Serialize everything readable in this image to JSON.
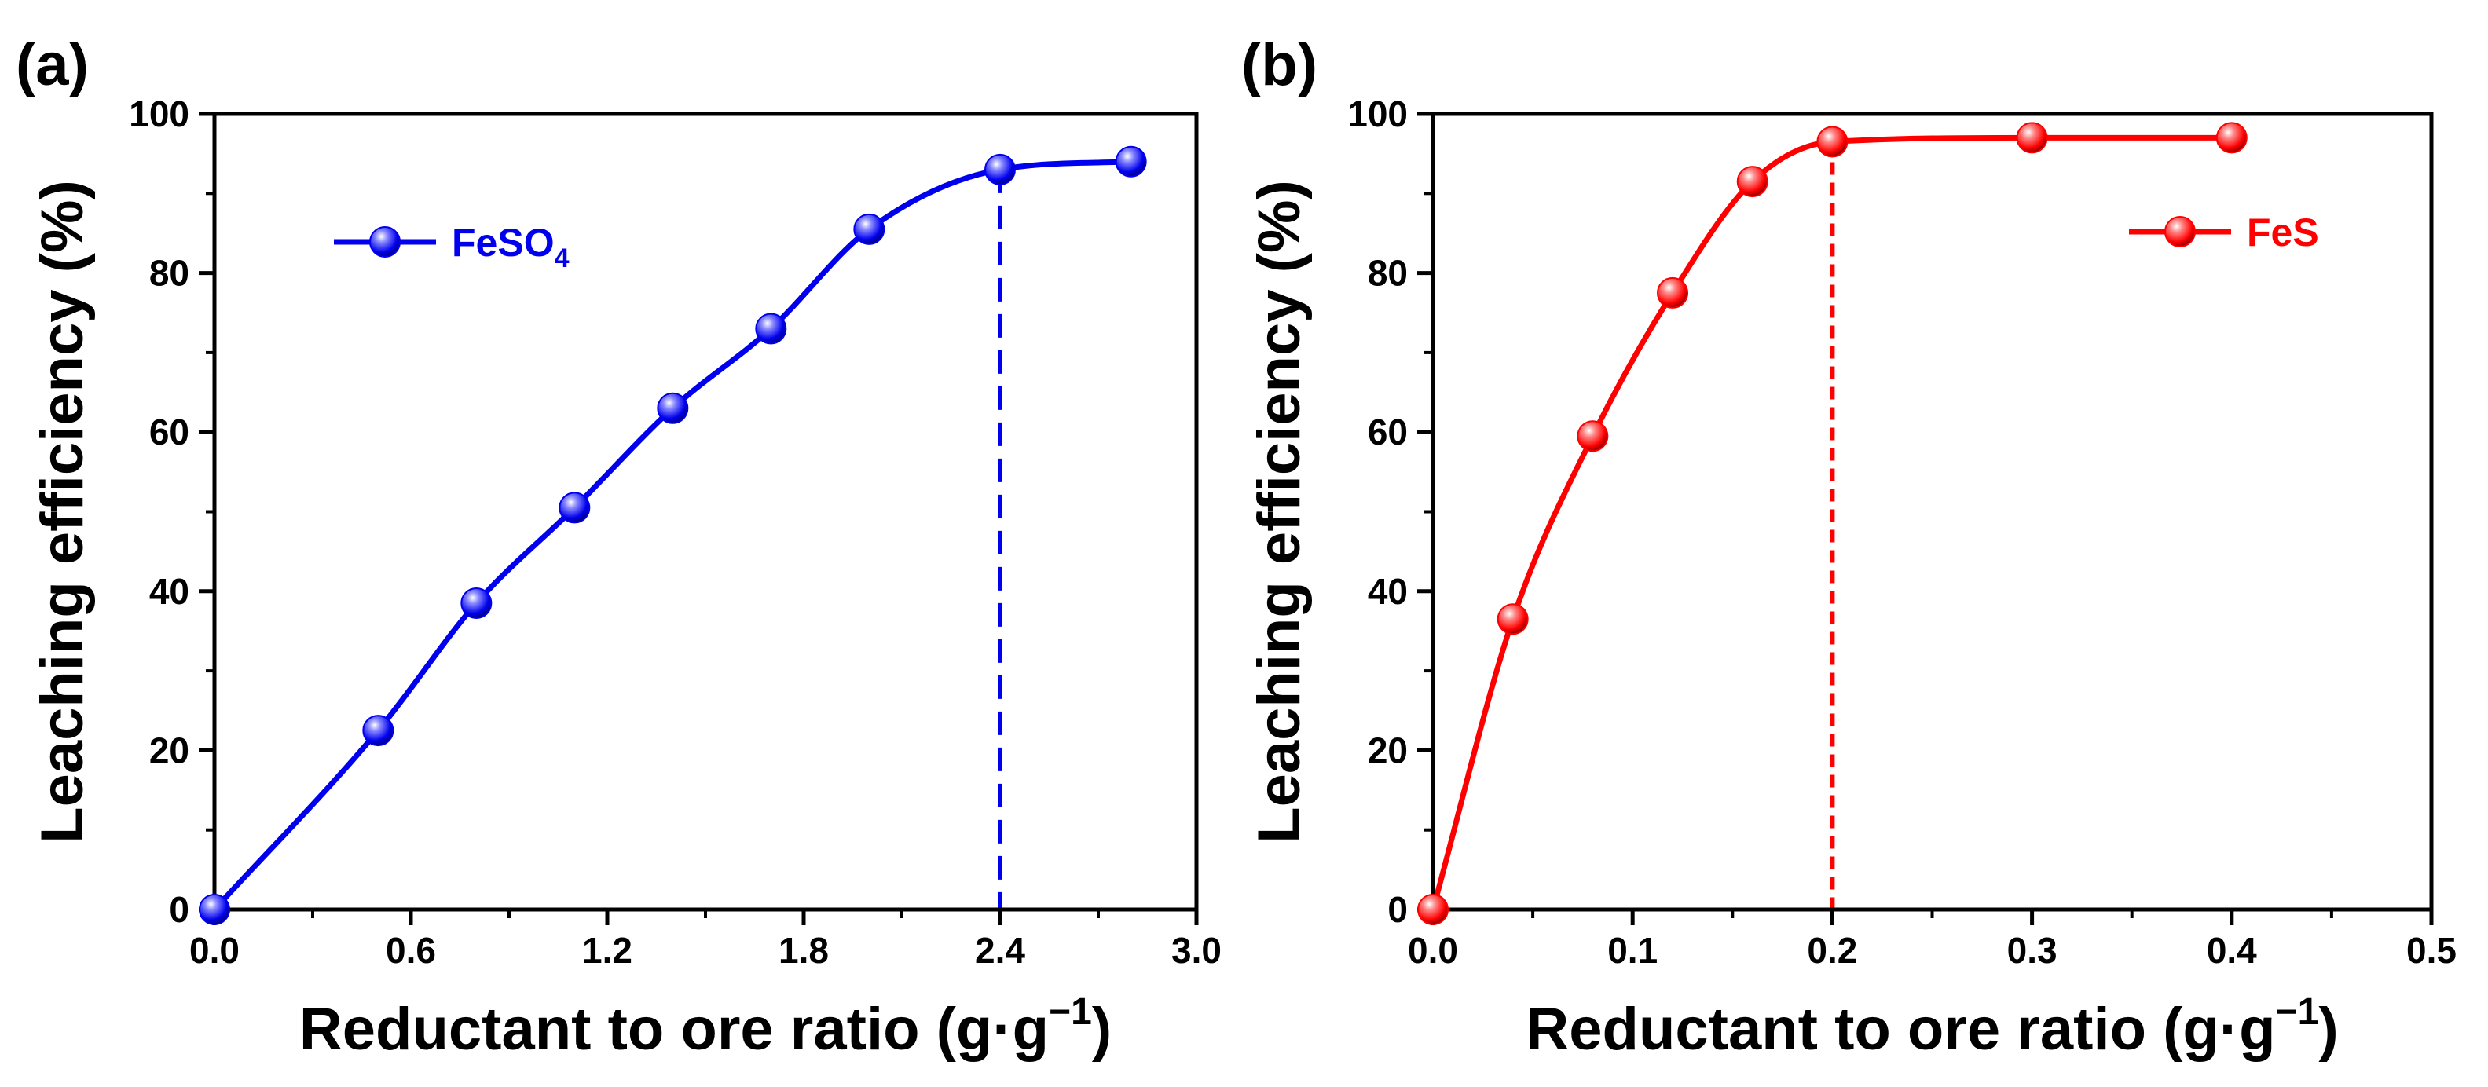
{
  "chart_data": [
    {
      "panel_label": "(a)",
      "type": "line",
      "xlabel": "Reductant to ore ratio (g·g",
      "xlabel_sup": "−1",
      "xlabel_end": ")",
      "ylabel": "Leaching efficiency (%)",
      "xlim": [
        0.0,
        3.0
      ],
      "ylim": [
        0,
        100
      ],
      "xticks": [
        "0.0",
        "0.6",
        "1.2",
        "1.8",
        "2.4",
        "3.0"
      ],
      "yticks": [
        "0",
        "20",
        "40",
        "60",
        "80",
        "100"
      ],
      "legend": {
        "placement": "top-left"
      },
      "dashed_marker_x": 2.4,
      "series": [
        {
          "name": "FeSO",
          "name_sub": "4",
          "color": "#0000ee",
          "x": [
            0.0,
            0.5,
            0.8,
            1.1,
            1.4,
            1.7,
            2.0,
            2.4,
            2.8
          ],
          "y": [
            0.0,
            22.5,
            38.5,
            50.5,
            63.0,
            73.0,
            85.5,
            93.0,
            94.0
          ]
        }
      ]
    },
    {
      "panel_label": "(b)",
      "type": "line",
      "xlabel": "Reductant to ore ratio (g·g",
      "xlabel_sup": "−1",
      "xlabel_end": ")",
      "ylabel": "Leaching efficiency (%)",
      "xlim": [
        0.0,
        0.5
      ],
      "ylim": [
        0,
        100
      ],
      "xticks": [
        "0.0",
        "0.1",
        "0.2",
        "0.3",
        "0.4",
        "0.5"
      ],
      "yticks": [
        "0",
        "20",
        "40",
        "60",
        "80",
        "100"
      ],
      "legend": {
        "placement": "top-right"
      },
      "dashed_marker_x": 0.2,
      "series": [
        {
          "name": "FeS",
          "color": "#ff0000",
          "x": [
            0.0,
            0.04,
            0.08,
            0.12,
            0.16,
            0.2,
            0.3,
            0.4
          ],
          "y": [
            0.0,
            36.5,
            59.5,
            77.5,
            91.5,
            96.5,
            97.0,
            97.0
          ]
        }
      ]
    }
  ]
}
